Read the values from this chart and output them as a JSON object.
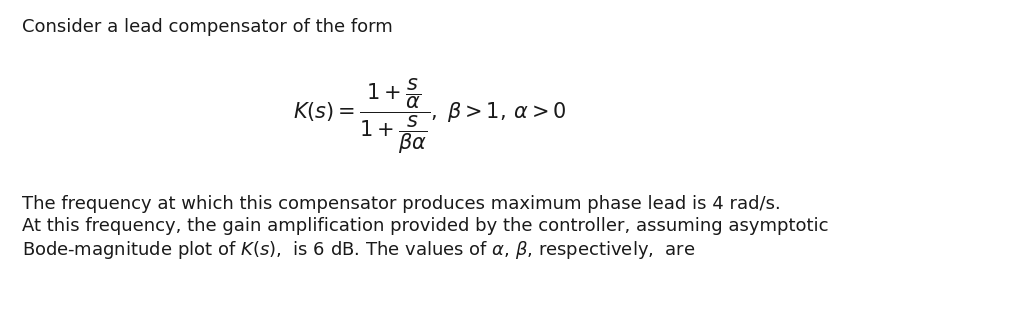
{
  "background_color": "#ffffff",
  "line1": "Consider a lead compensator of the form",
  "line3": "The frequency at which this compensator produces maximum phase lead is 4 rad/s.",
  "line4": "At this frequency, the gain amplification provided by the controller, assuming asymptotic",
  "line5": "Bode-magnitude plot of $K(s)$,  is 6 dB. The values of $\\alpha$, $\\beta$, respectively,  are",
  "text_color": "#1a1a1a",
  "font_size_body": 13.0,
  "font_size_formula": 15.0,
  "figwidth": 10.2,
  "figheight": 3.16,
  "dpi": 100
}
